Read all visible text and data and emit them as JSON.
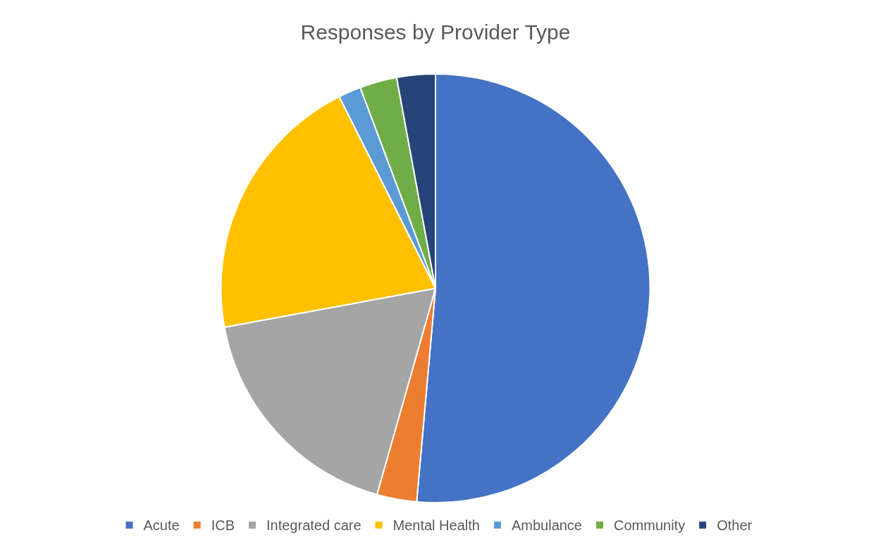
{
  "chart_data": {
    "type": "pie",
    "title": "Responses by Provider Type",
    "categories": [
      "Acute",
      "ICB",
      "Integrated care",
      "Mental Health",
      "Ambulance",
      "Community",
      "Other"
    ],
    "values": [
      51.4,
      3.0,
      17.7,
      20.5,
      1.7,
      2.8,
      2.9
    ],
    "colors": [
      "#4472c4",
      "#ed7d31",
      "#a5a5a5",
      "#ffc000",
      "#5b9bd5",
      "#70ad47",
      "#264478"
    ],
    "legend": "bottom"
  }
}
